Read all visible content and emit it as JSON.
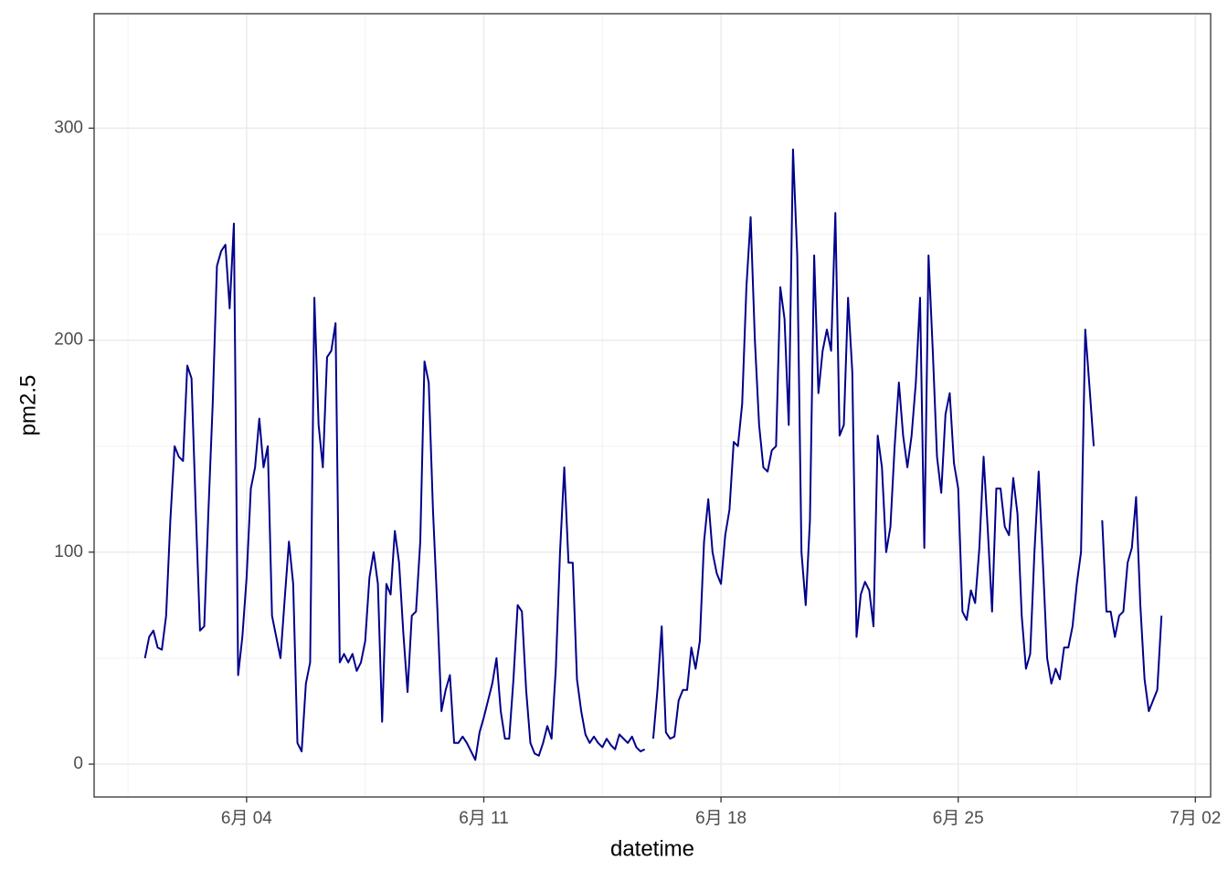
{
  "chart_data": {
    "type": "line",
    "x_label": "datetime",
    "y_label": "pm2.5",
    "xlim": [
      -0.5,
      32.45
    ],
    "ylim": [
      -15.5,
      354
    ],
    "xticks": [
      {
        "value": 4,
        "label": "6月 04"
      },
      {
        "value": 11,
        "label": "6月 11"
      },
      {
        "value": 18,
        "label": "6月 18"
      },
      {
        "value": 25,
        "label": "6月 25"
      },
      {
        "value": 32,
        "label": "7月 02"
      }
    ],
    "yticks": [
      0,
      100,
      200,
      300
    ],
    "xminor": [
      0.5,
      7.5,
      14.5,
      21.5,
      28.5
    ],
    "yminor": [
      50,
      150,
      250
    ],
    "grid": true,
    "series": [
      {
        "name": "pm2.5",
        "color": "#00008b",
        "x": [
          1,
          1.125,
          1.25,
          1.375,
          1.5,
          1.625,
          1.75,
          1.875,
          2,
          2.125,
          2.25,
          2.375,
          2.5,
          2.625,
          2.75,
          2.875,
          3,
          3.125,
          3.25,
          3.375,
          3.5,
          3.625,
          3.75,
          3.875,
          4,
          4.125,
          4.25,
          4.375,
          4.5,
          4.625,
          4.75,
          4.875,
          5,
          5.125,
          5.25,
          5.375,
          5.5,
          5.625,
          5.75,
          5.875,
          6,
          6.125,
          6.25,
          6.375,
          6.5,
          6.625,
          6.75,
          6.875,
          7,
          7.125,
          7.25,
          7.375,
          7.5,
          7.625,
          7.75,
          7.875,
          8,
          8.125,
          8.25,
          8.375,
          8.5,
          8.625,
          8.75,
          8.875,
          9,
          9.125,
          9.25,
          9.375,
          9.5,
          9.625,
          9.75,
          9.875,
          10,
          10.125,
          10.25,
          10.375,
          10.5,
          10.625,
          10.75,
          10.875,
          11,
          11.125,
          11.25,
          11.375,
          11.5,
          11.625,
          11.75,
          11.875,
          12,
          12.125,
          12.25,
          12.375,
          12.5,
          12.625,
          12.75,
          12.875,
          13,
          13.125,
          13.25,
          13.375,
          13.5,
          13.625,
          13.75,
          13.875,
          14,
          14.125,
          14.25,
          14.375,
          14.5,
          14.625,
          14.75,
          14.875,
          15,
          15.125,
          15.25,
          15.375,
          15.5,
          15.625,
          15.75,
          15.875,
          16,
          16.125,
          16.25,
          16.375,
          16.5,
          16.625,
          16.75,
          16.875,
          17,
          17.125,
          17.25,
          17.375,
          17.5,
          17.625,
          17.75,
          17.875,
          18,
          18.125,
          18.25,
          18.375,
          18.5,
          18.625,
          18.75,
          18.875,
          19,
          19.125,
          19.25,
          19.375,
          19.5,
          19.625,
          19.75,
          19.875,
          20,
          20.125,
          20.25,
          20.375,
          20.5,
          20.625,
          20.75,
          20.875,
          21,
          21.125,
          21.25,
          21.375,
          21.5,
          21.625,
          21.75,
          21.875,
          22,
          22.125,
          22.25,
          22.375,
          22.5,
          22.625,
          22.75,
          22.875,
          23,
          23.125,
          23.25,
          23.375,
          23.5,
          23.625,
          23.75,
          23.875,
          24,
          24.125,
          24.25,
          24.375,
          24.5,
          24.625,
          24.75,
          24.875,
          25,
          25.125,
          25.25,
          25.375,
          25.5,
          25.625,
          25.75,
          25.875,
          26,
          26.125,
          26.25,
          26.375,
          26.5,
          26.625,
          26.75,
          26.875,
          27,
          27.125,
          27.25,
          27.375,
          27.5,
          27.625,
          27.75,
          27.875,
          28,
          28.125,
          28.25,
          28.375,
          28.5,
          28.625,
          28.75,
          28.875,
          29,
          29.125,
          29.25,
          29.375,
          29.5,
          29.625,
          29.75,
          29.875,
          30,
          30.125,
          30.25,
          30.375,
          30.5,
          30.625,
          30.75,
          30.875,
          31
        ],
        "values": [
          50,
          60,
          63,
          55,
          54,
          70,
          115,
          150,
          145,
          143,
          188,
          182,
          120,
          63,
          65,
          120,
          170,
          235,
          242,
          245,
          215,
          255,
          42,
          60,
          88,
          130,
          140,
          163,
          140,
          150,
          70,
          60,
          50,
          78,
          105,
          85,
          10,
          6,
          38,
          48,
          220,
          160,
          140,
          192,
          195,
          208,
          48,
          52,
          48,
          52,
          44,
          48,
          58,
          88,
          100,
          85,
          20,
          85,
          80,
          110,
          95,
          62,
          34,
          70,
          72,
          105,
          190,
          180,
          120,
          75,
          25,
          35,
          42,
          10,
          10,
          13,
          10,
          6,
          2,
          15,
          22,
          30,
          38,
          50,
          25,
          12,
          12,
          40,
          75,
          72,
          35,
          10,
          5,
          4,
          10,
          18,
          12,
          45,
          100,
          140,
          95,
          95,
          40,
          25,
          14,
          10,
          13,
          10,
          8,
          12,
          9,
          7,
          14,
          12,
          10,
          13,
          8,
          6,
          7,
          null,
          12,
          35,
          65,
          15,
          12,
          13,
          30,
          35,
          35,
          55,
          45,
          58,
          105,
          125,
          100,
          90,
          85,
          108,
          120,
          152,
          150,
          170,
          225,
          258,
          200,
          160,
          140,
          138,
          148,
          150,
          225,
          210,
          160,
          290,
          240,
          100,
          75,
          115,
          240,
          175,
          195,
          205,
          195,
          260,
          155,
          160,
          220,
          185,
          60,
          80,
          86,
          82,
          65,
          155,
          140,
          100,
          112,
          150,
          180,
          155,
          140,
          155,
          180,
          220,
          102,
          240,
          195,
          145,
          128,
          165,
          175,
          142,
          130,
          72,
          68,
          82,
          76,
          102,
          145,
          110,
          72,
          130,
          130,
          112,
          108,
          135,
          118,
          70,
          45,
          52,
          100,
          138,
          95,
          50,
          38,
          45,
          40,
          55,
          55,
          65,
          85,
          100,
          205,
          178,
          150,
          null,
          115,
          72,
          72,
          60,
          70,
          72,
          95,
          102,
          126,
          75,
          40,
          25,
          30,
          35,
          70
        ]
      }
    ]
  }
}
